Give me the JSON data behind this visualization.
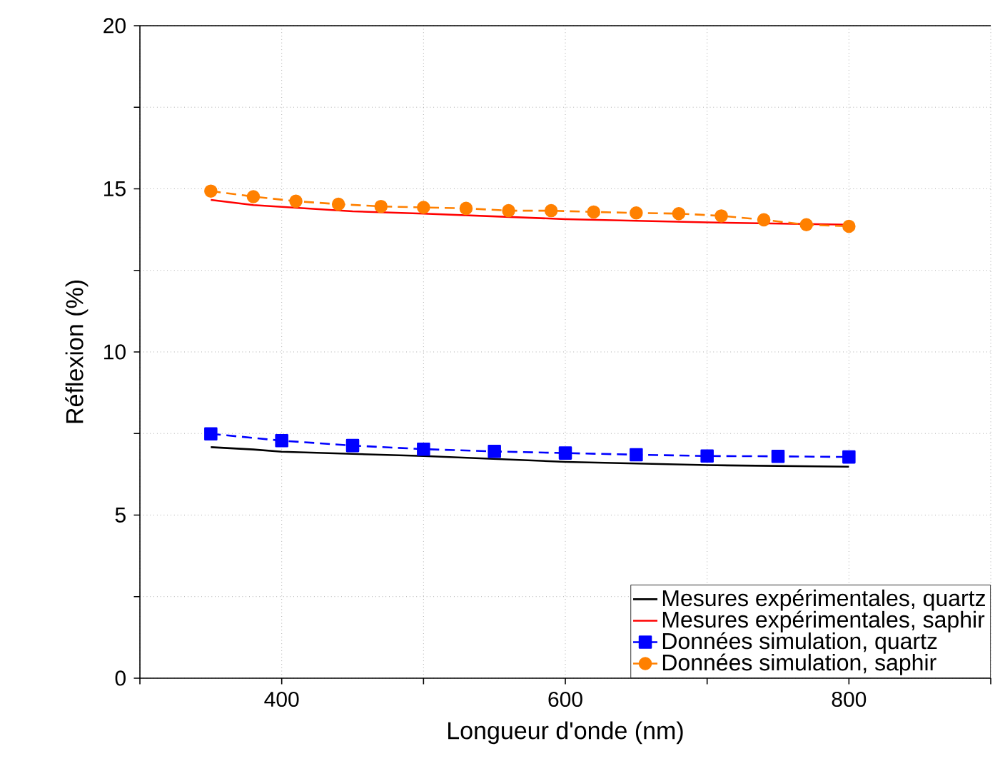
{
  "chart_data": {
    "type": "line",
    "xlabel": "Longueur d'onde (nm)",
    "ylabel": "Réflexion (%)",
    "xlim": [
      300,
      900
    ],
    "ylim": [
      0,
      20
    ],
    "xticks": [
      {
        "value": 300,
        "label": null
      },
      400,
      {
        "value": 500,
        "label": null
      },
      600,
      {
        "value": 700,
        "label": null
      },
      800,
      {
        "value": 900,
        "label": null
      }
    ],
    "yticks": [
      0,
      {
        "value": 2.5,
        "label": null
      },
      5,
      {
        "value": 7.5,
        "label": null
      },
      10,
      {
        "value": 12.5,
        "label": null
      },
      15,
      {
        "value": 17.5,
        "label": null
      },
      20
    ],
    "grid": true,
    "legend": "bottom right",
    "series": [
      {
        "name": "Mesures expérimentales, quartz",
        "color": "#000000",
        "marker": "none",
        "line_style": "solid",
        "x": [
          350,
          380,
          400,
          500,
          600,
          700,
          800
        ],
        "values": [
          7.08,
          7.01,
          6.94,
          6.81,
          6.63,
          6.53,
          6.48
        ]
      },
      {
        "name": "Mesures expérimentales, saphir",
        "color": "#ff0000",
        "marker": "none",
        "line_style": "solid",
        "x": [
          350,
          380,
          450,
          500,
          600,
          700,
          800
        ],
        "values": [
          14.66,
          14.5,
          14.31,
          14.24,
          14.07,
          13.97,
          13.9
        ]
      },
      {
        "name": "Données simulation, quartz",
        "color": "#0000ff",
        "marker": "square",
        "line_style": "dashed",
        "x": [
          350,
          400,
          450,
          500,
          550,
          600,
          650,
          700,
          750,
          800
        ],
        "values": [
          7.49,
          7.28,
          7.13,
          7.02,
          6.95,
          6.9,
          6.85,
          6.81,
          6.8,
          6.78
        ]
      },
      {
        "name": "Données simulation, saphir",
        "color": "#ff8000",
        "marker": "circle",
        "line_style": "dashed",
        "x": [
          350,
          380,
          410,
          440,
          470,
          500,
          530,
          560,
          590,
          620,
          650,
          680,
          710,
          740,
          770,
          800
        ],
        "values": [
          14.93,
          14.76,
          14.62,
          14.53,
          14.46,
          14.43,
          14.4,
          14.33,
          14.33,
          14.29,
          14.26,
          14.24,
          14.17,
          14.05,
          13.9,
          13.85
        ]
      }
    ]
  }
}
